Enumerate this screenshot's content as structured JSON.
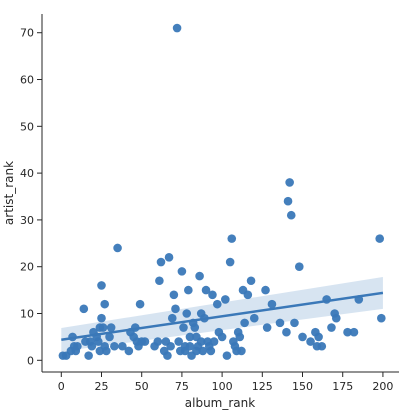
{
  "chart_data": {
    "type": "scatter",
    "title": "",
    "xlabel": "album_rank",
    "ylabel": "artist_rank",
    "xlim": [
      -12,
      210
    ],
    "ylim": [
      -2.5,
      74
    ],
    "xticks": [
      0,
      25,
      50,
      75,
      100,
      125,
      150,
      175,
      200
    ],
    "yticks": [
      0,
      10,
      20,
      30,
      40,
      50,
      60,
      70
    ],
    "grid": false,
    "legend": "none",
    "colors": {
      "points": "#3a78b8",
      "line": "#3a78b8",
      "band": "#b7cde6"
    },
    "regression": {
      "x": [
        0,
        200
      ],
      "y": [
        4.4,
        14.4
      ],
      "ci_upper": [
        6.9,
        17.8
      ],
      "ci_lower": [
        1.9,
        11.0
      ]
    },
    "points": [
      [
        1,
        1
      ],
      [
        3,
        1
      ],
      [
        6,
        2
      ],
      [
        7,
        5
      ],
      [
        8,
        3
      ],
      [
        9,
        2
      ],
      [
        10,
        3
      ],
      [
        14,
        11
      ],
      [
        15,
        4
      ],
      [
        17,
        1
      ],
      [
        18,
        4
      ],
      [
        19,
        3
      ],
      [
        20,
        6
      ],
      [
        22,
        5
      ],
      [
        23,
        4
      ],
      [
        24,
        7
      ],
      [
        24,
        2
      ],
      [
        25,
        9
      ],
      [
        25,
        16
      ],
      [
        26,
        7
      ],
      [
        27,
        3
      ],
      [
        27,
        12
      ],
      [
        28,
        2
      ],
      [
        30,
        5
      ],
      [
        31,
        7
      ],
      [
        33,
        3
      ],
      [
        35,
        24
      ],
      [
        38,
        3
      ],
      [
        42,
        2
      ],
      [
        43,
        6
      ],
      [
        45,
        5
      ],
      [
        46,
        7
      ],
      [
        47,
        4
      ],
      [
        48,
        3
      ],
      [
        49,
        12
      ],
      [
        50,
        4
      ],
      [
        52,
        4
      ],
      [
        58,
        3
      ],
      [
        60,
        4
      ],
      [
        61,
        17
      ],
      [
        62,
        21
      ],
      [
        64,
        2
      ],
      [
        65,
        4
      ],
      [
        66,
        1
      ],
      [
        67,
        22
      ],
      [
        68,
        3
      ],
      [
        69,
        9
      ],
      [
        70,
        14
      ],
      [
        71,
        11
      ],
      [
        72,
        71
      ],
      [
        73,
        4
      ],
      [
        74,
        2
      ],
      [
        75,
        19
      ],
      [
        76,
        7
      ],
      [
        77,
        3
      ],
      [
        77,
        2
      ],
      [
        78,
        10
      ],
      [
        79,
        15
      ],
      [
        80,
        5
      ],
      [
        80,
        3
      ],
      [
        81,
        1
      ],
      [
        82,
        8
      ],
      [
        83,
        7
      ],
      [
        84,
        2
      ],
      [
        84,
        5
      ],
      [
        85,
        3
      ],
      [
        86,
        18
      ],
      [
        87,
        10
      ],
      [
        87,
        4
      ],
      [
        88,
        2
      ],
      [
        89,
        9
      ],
      [
        90,
        15
      ],
      [
        91,
        4
      ],
      [
        92,
        3
      ],
      [
        93,
        2
      ],
      [
        94,
        14
      ],
      [
        95,
        4
      ],
      [
        97,
        12
      ],
      [
        98,
        6
      ],
      [
        100,
        5
      ],
      [
        102,
        13
      ],
      [
        103,
        1
      ],
      [
        105,
        21
      ],
      [
        106,
        26
      ],
      [
        107,
        4
      ],
      [
        108,
        3
      ],
      [
        109,
        2
      ],
      [
        110,
        6
      ],
      [
        111,
        5
      ],
      [
        112,
        2
      ],
      [
        113,
        15
      ],
      [
        114,
        8
      ],
      [
        116,
        14
      ],
      [
        118,
        17
      ],
      [
        120,
        9
      ],
      [
        127,
        15
      ],
      [
        128,
        7
      ],
      [
        131,
        12
      ],
      [
        136,
        8
      ],
      [
        140,
        6
      ],
      [
        141,
        34
      ],
      [
        142,
        38
      ],
      [
        143,
        31
      ],
      [
        145,
        8
      ],
      [
        148,
        20
      ],
      [
        150,
        5
      ],
      [
        155,
        4
      ],
      [
        158,
        6
      ],
      [
        159,
        3
      ],
      [
        160,
        5
      ],
      [
        162,
        3
      ],
      [
        165,
        13
      ],
      [
        168,
        7
      ],
      [
        170,
        10
      ],
      [
        171,
        9
      ],
      [
        178,
        6
      ],
      [
        182,
        6
      ],
      [
        185,
        13
      ],
      [
        198,
        26
      ],
      [
        199,
        9
      ]
    ]
  }
}
